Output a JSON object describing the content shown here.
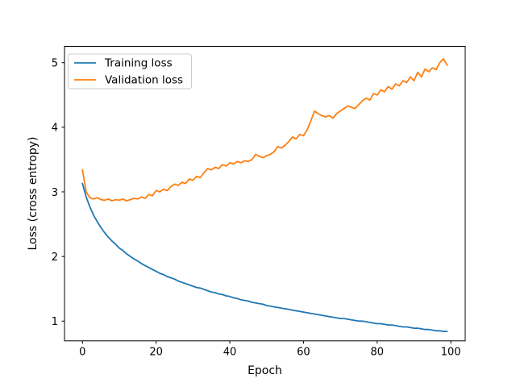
{
  "chart_data": {
    "type": "line",
    "title": "",
    "xlabel": "Epoch",
    "ylabel": "Loss (cross entropy)",
    "x_start": 0,
    "x_step": 1,
    "xlim": [
      -4.88,
      103.9
    ],
    "ylim": [
      0.694,
      5.252
    ],
    "x_ticks": [
      0,
      20,
      40,
      60,
      80,
      100
    ],
    "y_ticks": [
      1,
      2,
      3,
      4,
      5
    ],
    "grid": false,
    "legend_position": "upper left",
    "background": "#ffffff",
    "axis_color": "#000000",
    "series": [
      {
        "name": "Training loss",
        "color": "#1f77b4",
        "values": [
          3.13,
          2.92,
          2.77,
          2.64,
          2.54,
          2.45,
          2.37,
          2.3,
          2.24,
          2.19,
          2.13,
          2.09,
          2.04,
          2.0,
          1.96,
          1.93,
          1.89,
          1.86,
          1.83,
          1.8,
          1.77,
          1.74,
          1.72,
          1.69,
          1.67,
          1.65,
          1.62,
          1.6,
          1.58,
          1.56,
          1.54,
          1.52,
          1.51,
          1.49,
          1.47,
          1.45,
          1.44,
          1.42,
          1.41,
          1.39,
          1.38,
          1.36,
          1.35,
          1.33,
          1.32,
          1.31,
          1.29,
          1.28,
          1.27,
          1.26,
          1.24,
          1.23,
          1.22,
          1.21,
          1.2,
          1.19,
          1.18,
          1.17,
          1.16,
          1.15,
          1.14,
          1.13,
          1.12,
          1.11,
          1.1,
          1.09,
          1.08,
          1.07,
          1.06,
          1.05,
          1.04,
          1.04,
          1.03,
          1.02,
          1.01,
          1.0,
          1.0,
          0.99,
          0.98,
          0.97,
          0.96,
          0.96,
          0.95,
          0.94,
          0.94,
          0.93,
          0.92,
          0.91,
          0.91,
          0.9,
          0.89,
          0.89,
          0.88,
          0.87,
          0.87,
          0.86,
          0.85,
          0.85,
          0.84,
          0.84
        ]
      },
      {
        "name": "Validation loss",
        "color": "#ff7f0e",
        "values": [
          3.34,
          3.0,
          2.91,
          2.89,
          2.91,
          2.88,
          2.87,
          2.89,
          2.86,
          2.88,
          2.87,
          2.89,
          2.86,
          2.88,
          2.9,
          2.89,
          2.92,
          2.9,
          2.96,
          2.94,
          3.02,
          3.0,
          3.04,
          3.02,
          3.08,
          3.12,
          3.1,
          3.15,
          3.13,
          3.2,
          3.18,
          3.24,
          3.22,
          3.3,
          3.36,
          3.34,
          3.38,
          3.36,
          3.42,
          3.4,
          3.45,
          3.43,
          3.47,
          3.45,
          3.48,
          3.47,
          3.5,
          3.58,
          3.55,
          3.53,
          3.56,
          3.58,
          3.62,
          3.7,
          3.68,
          3.72,
          3.78,
          3.85,
          3.82,
          3.89,
          3.87,
          3.96,
          4.1,
          4.25,
          4.21,
          4.18,
          4.16,
          4.18,
          4.14,
          4.21,
          4.25,
          4.29,
          4.33,
          4.31,
          4.29,
          4.35,
          4.41,
          4.45,
          4.42,
          4.52,
          4.5,
          4.58,
          4.55,
          4.63,
          4.59,
          4.67,
          4.64,
          4.72,
          4.69,
          4.78,
          4.72,
          4.85,
          4.78,
          4.9,
          4.86,
          4.92,
          4.89,
          5.0,
          5.06,
          4.96
        ]
      }
    ]
  }
}
